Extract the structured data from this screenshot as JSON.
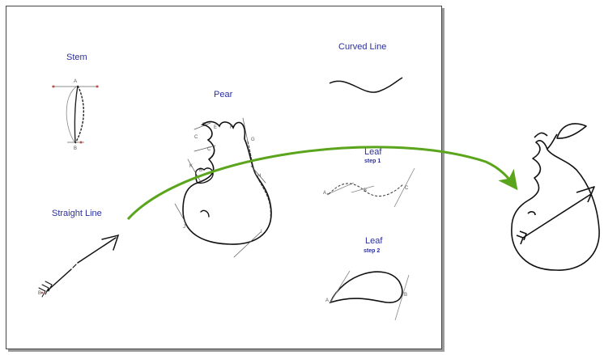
{
  "labels": {
    "stem": "Stem",
    "curved_line": "Curved Line",
    "pear": "Pear",
    "straight_line": "Straight Line",
    "leaf1": "Leaf",
    "leaf1_step": "step 1",
    "leaf2": "Leaf",
    "leaf2_step": "step 2"
  },
  "points": {
    "stem_a": "A",
    "stem_b": "B",
    "pear_c": "C",
    "pear_d": "D",
    "pear_e": "E",
    "pear_f": "F",
    "pear_g": "G",
    "pear_h": "H",
    "pear_i": "I",
    "pear_j": "J",
    "pear_k": "K",
    "pear_b": "B",
    "pear_c2": "C",
    "leaf1_a": "A",
    "leaf1_b": "B",
    "leaf1_c": "C",
    "leaf2_a": "A",
    "leaf2_b": "B",
    "arrow_b": "B"
  },
  "colors": {
    "label": "#2b2f9e",
    "guide": "#555555",
    "handle": "#c0504d",
    "green_arrow": "#5aa51c"
  }
}
